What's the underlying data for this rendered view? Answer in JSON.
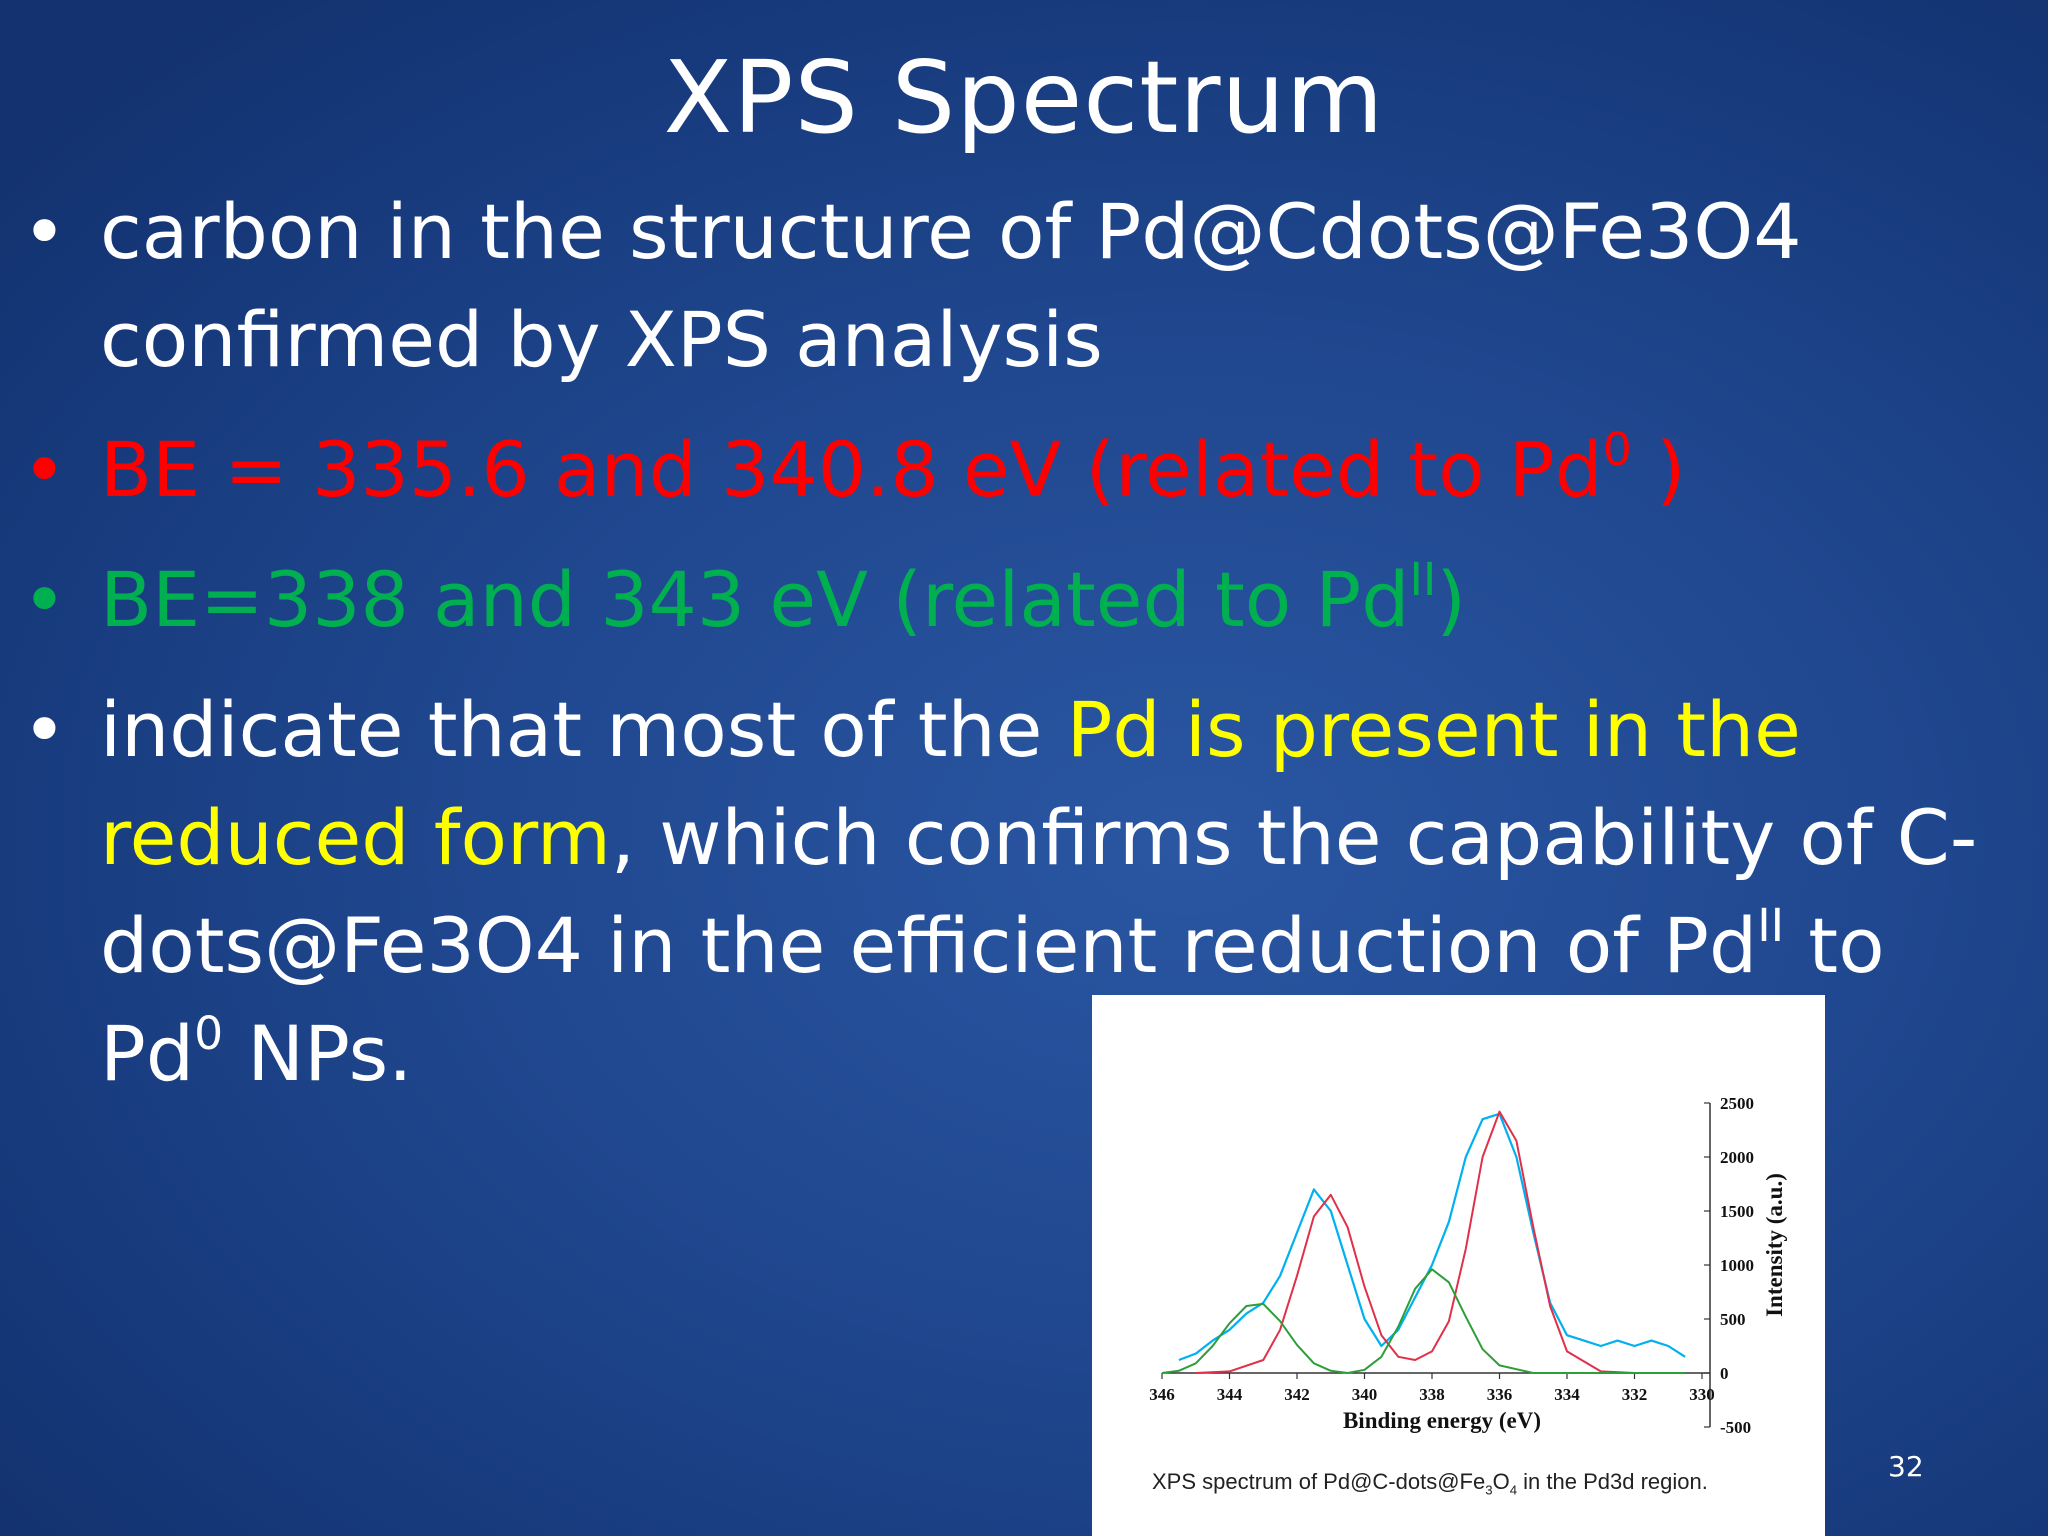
{
  "slide": {
    "title": "XPS Spectrum",
    "page_number": "32",
    "bullets": [
      {
        "text": "carbon in the structure of Pd@Cdots@Fe3O4 confirmed by XPS analysis"
      },
      {
        "text": "BE = 335.6 and 340.8 eV (related to Pd",
        "sup": "0",
        "tail": " )"
      },
      {
        "text": "BE=338 and 343 eV (related to Pd",
        "sup": "II",
        "tail": ")"
      },
      {
        "part1": "indicate that most of the ",
        "highlight": "Pd is present in the reduced form",
        "part2": ", which confirms the capability of C-dots@Fe3O4 in the efficient reduction of Pd",
        "sup1": "II",
        "part3": " to Pd",
        "sup2": "0",
        "part4": " NPs."
      }
    ],
    "bullet_symbol": "•",
    "colors": {
      "text": "#ffffff",
      "red": "#ff0000",
      "green": "#00b050",
      "yellow": "#ffff00",
      "background": "#1f468d"
    }
  },
  "figure": {
    "caption_pre": "XPS spectrum of Pd@C-dots@Fe",
    "caption_sub1": "3",
    "caption_mid": "O",
    "caption_sub2": "4",
    "caption_post": " in the Pd3d region."
  },
  "chart_data": {
    "type": "line",
    "xlabel": "Binding energy (eV)",
    "ylabel": "Intensity (a.u.)",
    "xlim": [
      346,
      330
    ],
    "ylim": [
      -500,
      2500
    ],
    "x_ticks": [
      346,
      344,
      342,
      340,
      338,
      336,
      334,
      332,
      330
    ],
    "y_ticks": [
      2500,
      2000,
      1500,
      1000,
      500,
      0,
      -500
    ],
    "y_axis_position": "right",
    "series": [
      {
        "color": "#00b0f0",
        "kind": "measured",
        "x": [
          345.5,
          345,
          344.5,
          344,
          343.5,
          343,
          342.5,
          342,
          341.5,
          341,
          340.5,
          340,
          339.5,
          339,
          338.5,
          338,
          337.5,
          337,
          336.5,
          336,
          335.5,
          335,
          334.5,
          334,
          333.5,
          333,
          332.5,
          332,
          331.5,
          331,
          330.5
        ],
        "y": [
          120,
          180,
          300,
          400,
          550,
          650,
          900,
          1300,
          1700,
          1500,
          1000,
          500,
          250,
          400,
          700,
          1000,
          1400,
          2000,
          2350,
          2400,
          2000,
          1300,
          650,
          350,
          300,
          250,
          300,
          250,
          300,
          250,
          150
        ]
      },
      {
        "color": "#e0304a",
        "kind": "fit Pd0",
        "x": [
          345,
          344,
          343,
          342.5,
          342,
          341.5,
          341,
          340.5,
          340,
          339.5,
          339,
          338.5,
          338,
          337.5,
          337,
          336.5,
          336,
          335.5,
          335,
          334.5,
          334,
          333,
          332,
          331,
          330.5
        ],
        "y": [
          0,
          15,
          120,
          400,
          900,
          1450,
          1650,
          1350,
          800,
          350,
          150,
          120,
          200,
          480,
          1150,
          2000,
          2420,
          2150,
          1350,
          620,
          200,
          15,
          0,
          0,
          0
        ]
      },
      {
        "color": "#2e9e3a",
        "kind": "fit PdII",
        "x": [
          346,
          345.5,
          345,
          344.5,
          344,
          343.5,
          343,
          342.5,
          342,
          341.5,
          341,
          340.5,
          340,
          339.5,
          339,
          338.5,
          338,
          337.5,
          337,
          336.5,
          336,
          335,
          334,
          332,
          330.5
        ],
        "y": [
          0,
          20,
          90,
          250,
          460,
          620,
          640,
          480,
          260,
          90,
          20,
          0,
          30,
          150,
          430,
          780,
          960,
          840,
          520,
          220,
          70,
          0,
          0,
          0,
          0
        ]
      }
    ]
  }
}
